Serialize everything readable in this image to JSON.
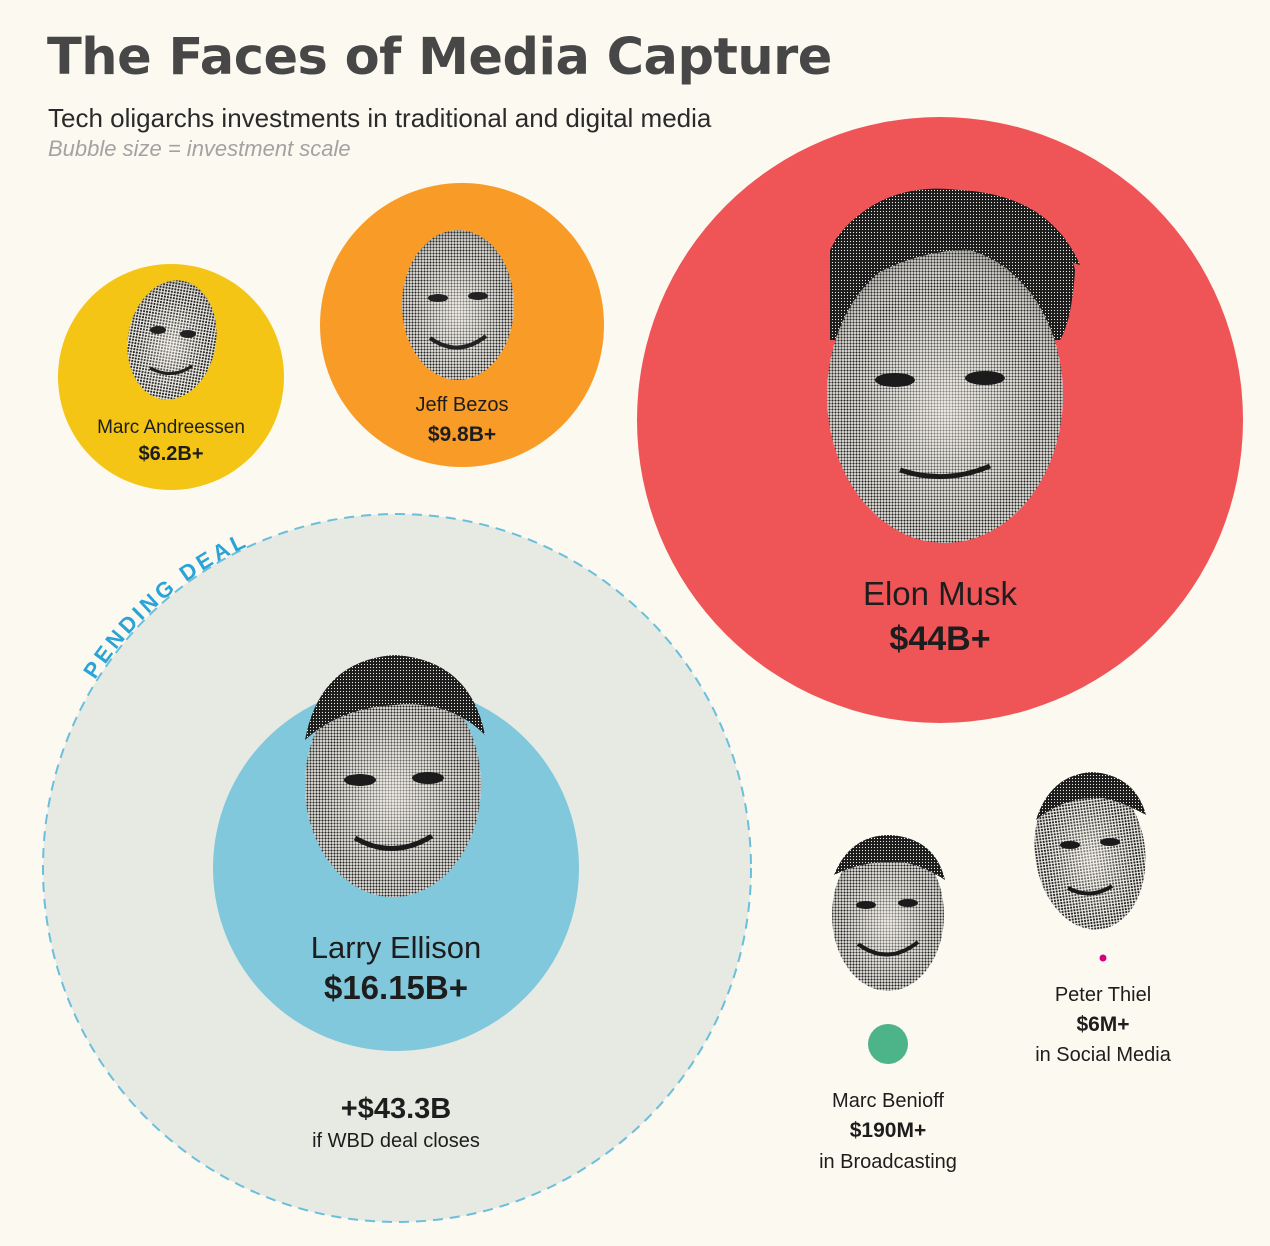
{
  "title": "The Faces of Media Capture",
  "subtitle": "Tech oligarchs investments in traditional and digital media",
  "note": "Bubble size = investment scale",
  "colors": {
    "background": "#fcf9f0",
    "andreessen": "#f4c514",
    "bezos": "#f99b27",
    "musk": "#ef5457",
    "ellison": "#82c8dd",
    "pending": "#e6eae3",
    "pending_stroke": "#6bbfdc",
    "benioff": "#4db388",
    "thiel": "#d6007f",
    "text": "#1d1d1d",
    "pending_label": "#2aa3d9"
  },
  "chart_data": {
    "type": "bubble",
    "title": "The Faces of Media Capture",
    "subtitle": "Tech oligarchs investments in traditional and digital media",
    "note": "Bubble size = investment scale",
    "bubbles": [
      {
        "name": "Marc Andreessen",
        "value_label": "$6.2B+",
        "value_usd": 6200000000,
        "icon": "marc-andreessen-portrait",
        "color": "#f4c514"
      },
      {
        "name": "Jeff Bezos",
        "value_label": "$9.8B+",
        "value_usd": 9800000000,
        "icon": "jeff-bezos-portrait",
        "color": "#f99b27"
      },
      {
        "name": "Elon Musk",
        "value_label": "$44B+",
        "value_usd": 44000000000,
        "icon": "elon-musk-portrait",
        "color": "#ef5457"
      },
      {
        "name": "Larry Ellison",
        "value_label": "$16.15B+",
        "value_usd": 16150000000,
        "icon": "larry-ellison-portrait",
        "color": "#82c8dd",
        "pending": {
          "label": "PENDING DEAL",
          "value_label": "+$43.3B",
          "value_usd": 43300000000,
          "caption": "if WBD deal closes"
        }
      },
      {
        "name": "Marc Benioff",
        "value_label": "$190M+",
        "value_usd": 190000000,
        "caption": "in Broadcasting",
        "icon": "marc-benioff-portrait",
        "color": "#4db388"
      },
      {
        "name": "Peter Thiel",
        "value_label": "$6M+",
        "value_usd": 6000000,
        "caption": "in Social Media",
        "icon": "peter-thiel-portrait",
        "color": "#d6007f"
      }
    ]
  }
}
